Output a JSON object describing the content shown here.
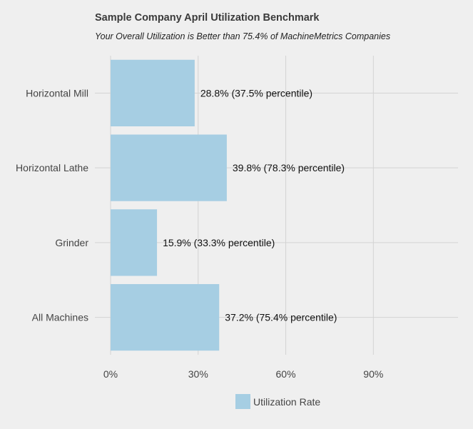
{
  "chart_data": {
    "type": "bar",
    "orientation": "horizontal",
    "title": "Sample Company April Utilization Benchmark",
    "subtitle": "Your Overall Utilization is Better than 75.4% of MachineMetrics Companies",
    "categories": [
      "Horizontal Mill",
      "Horizontal Lathe",
      "Grinder",
      "All Machines"
    ],
    "series": [
      {
        "name": "Utilization Rate",
        "values": [
          28.8,
          39.8,
          15.9,
          37.2
        ],
        "color": "#a6cee3"
      }
    ],
    "data_labels": [
      "28.8% (37.5% percentile)",
      "39.8% (78.3% percentile)",
      "15.9% (33.3% percentile)",
      "37.2% (75.4% percentile)"
    ],
    "x_ticks": [
      0,
      30,
      60,
      90
    ],
    "x_tick_labels": [
      "0%",
      "30%",
      "60%",
      "90%"
    ],
    "xlim": [
      0,
      119
    ],
    "grid": true,
    "legend_position": "bottom",
    "background": "#efefef",
    "grid_color": "#d3d3d3"
  }
}
